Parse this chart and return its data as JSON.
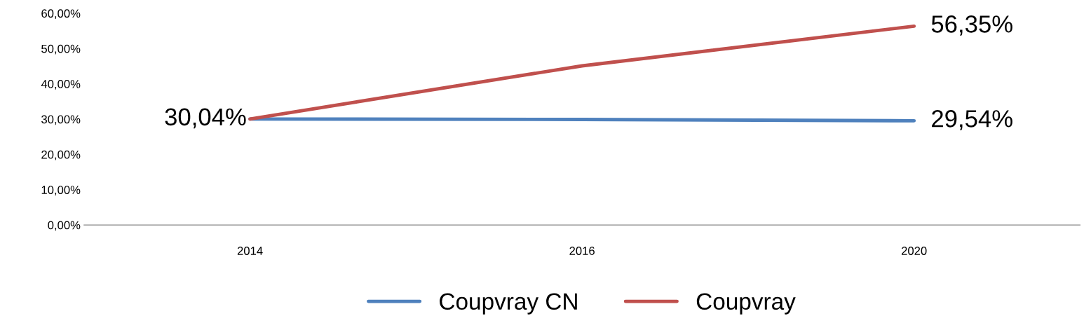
{
  "chart_data": {
    "type": "line",
    "categories": [
      "2014",
      "2016",
      "2020"
    ],
    "series": [
      {
        "name": "Coupvray CN",
        "color": "#4f81bd",
        "values": [
          30.04,
          29.9,
          29.54
        ],
        "value_labels": [
          null,
          null,
          "29,54%"
        ]
      },
      {
        "name": "Coupvray",
        "color": "#c0504d",
        "values": [
          30.04,
          45.1,
          56.35
        ],
        "value_labels": [
          "30,04%",
          null,
          "56,35%"
        ]
      }
    ],
    "ylim": [
      0,
      60
    ],
    "yticks": [
      {
        "value": 0,
        "label": "0,00%"
      },
      {
        "value": 10,
        "label": "10,00%"
      },
      {
        "value": 20,
        "label": "20,00%"
      },
      {
        "value": 30,
        "label": "30,00%"
      },
      {
        "value": 40,
        "label": "40,00%"
      },
      {
        "value": 50,
        "label": "50,00%"
      },
      {
        "value": 60,
        "label": "60,00%"
      }
    ],
    "grid": false,
    "legend": "bottom",
    "marker": "none",
    "line_style": "solid"
  }
}
